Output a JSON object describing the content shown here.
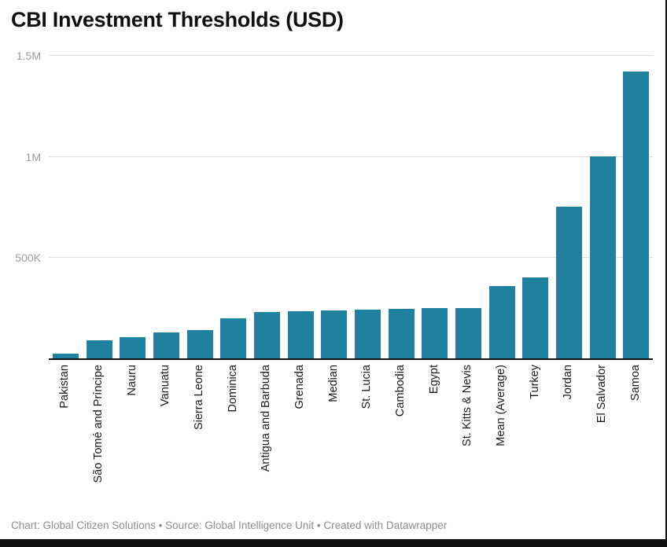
{
  "header": {
    "title": "CBI Investment Thresholds (USD)"
  },
  "footer": {
    "text": "Chart: Global Citizen Solutions • Source: Global Intelligence Unit • Created with Datawrapper"
  },
  "colors": {
    "bar": "#1f80a0",
    "gridline": "#dcdcdc",
    "axis_line": "#101010",
    "ytick_text": "#9b9b9b",
    "xtick_text": "#1a1a1a",
    "footer_text": "#8c8c8c",
    "window_edge": "#111111"
  },
  "chart_data": {
    "type": "bar",
    "title": "CBI Investment Thresholds (USD)",
    "categories": [
      "Pakistan",
      "São Tomé and Príncipe",
      "Nauru",
      "Vanuatu",
      "Sierra Leone",
      "Dominica",
      "Antigua and Barbuda",
      "Grenada",
      "Median",
      "St. Lucia",
      "Cambodia",
      "Egypt",
      "St. Kitts & Nevis",
      "Mean (Average)",
      "Turkey",
      "Jordan",
      "El Salvador",
      "Samoa"
    ],
    "values": [
      25000,
      90000,
      105000,
      130000,
      140000,
      200000,
      230000,
      235000,
      237500,
      240000,
      245000,
      250000,
      250000,
      356875,
      400000,
      750000,
      1000000,
      1420000
    ],
    "xlabel": "",
    "ylabel": "",
    "ylim": [
      0,
      1500000
    ],
    "y_ticks": [
      {
        "value": 500000,
        "label": "500K"
      },
      {
        "value": 1000000,
        "label": "1M"
      },
      {
        "value": 1500000,
        "label": "1.5M"
      }
    ],
    "grid": true,
    "legend": false,
    "x_labels_rotated_degrees": 90
  }
}
